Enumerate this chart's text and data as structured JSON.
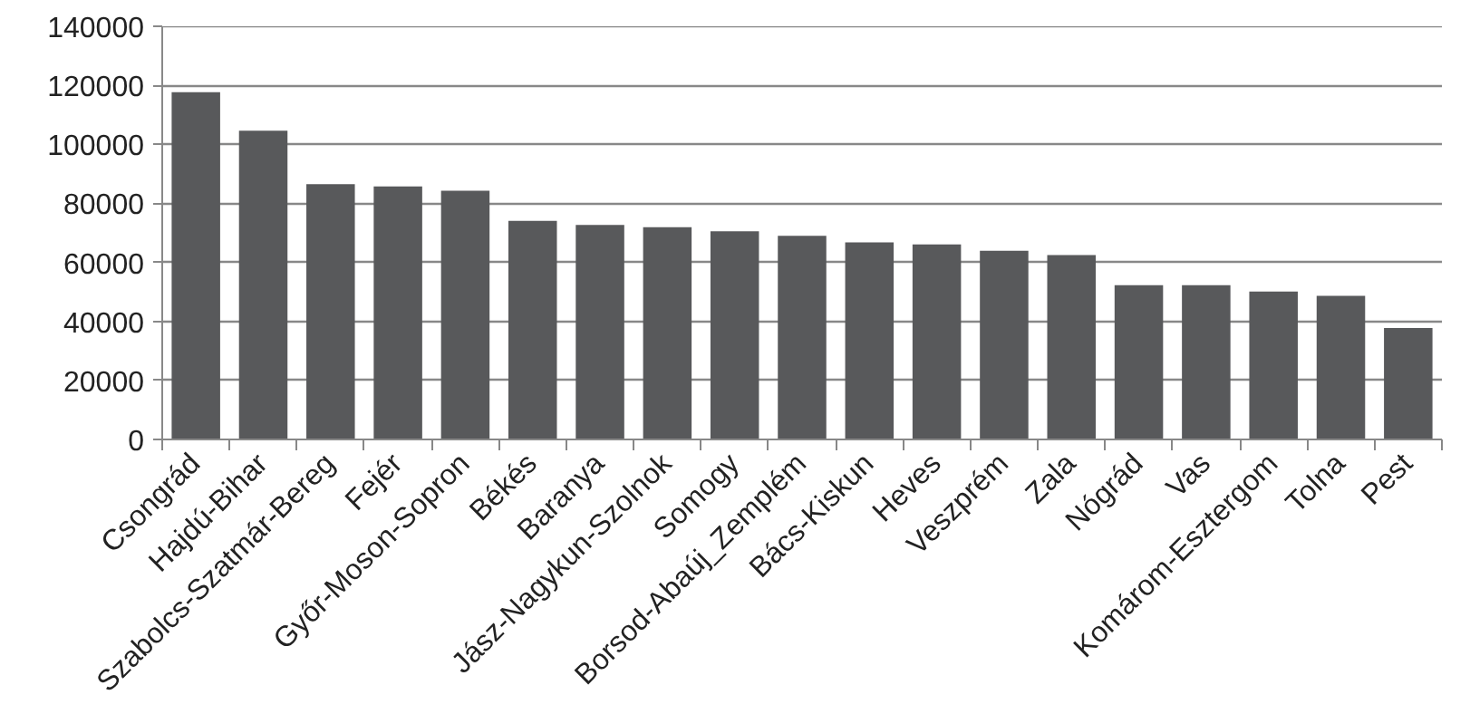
{
  "chart_data": {
    "type": "bar",
    "categories": [
      "Csongrád",
      "Hajdú-Bihar",
      "Szabolcs-Szatmár-Bereg",
      "Fejér",
      "Győr-Moson-Sopron",
      "Békés",
      "Baranya",
      "Jász-Nagykun-Szolnok",
      "Somogy",
      "Borsod-Abaúj_Zemplém",
      "Bács-Kiskun",
      "Heves",
      "Veszprém",
      "Zala",
      "Nógrád",
      "Vas",
      "Komárom-Esztergom",
      "Tolna",
      "Pest"
    ],
    "values": [
      117700,
      104600,
      86500,
      85700,
      84300,
      74100,
      72700,
      71900,
      70500,
      69000,
      66800,
      66100,
      63900,
      62500,
      52300,
      52300,
      50100,
      48700,
      37800
    ],
    "color": "#58595b",
    "ylim": [
      0,
      140000
    ],
    "yticks": [
      0,
      20000,
      40000,
      60000,
      80000,
      100000,
      120000,
      140000
    ],
    "grid": "y"
  }
}
